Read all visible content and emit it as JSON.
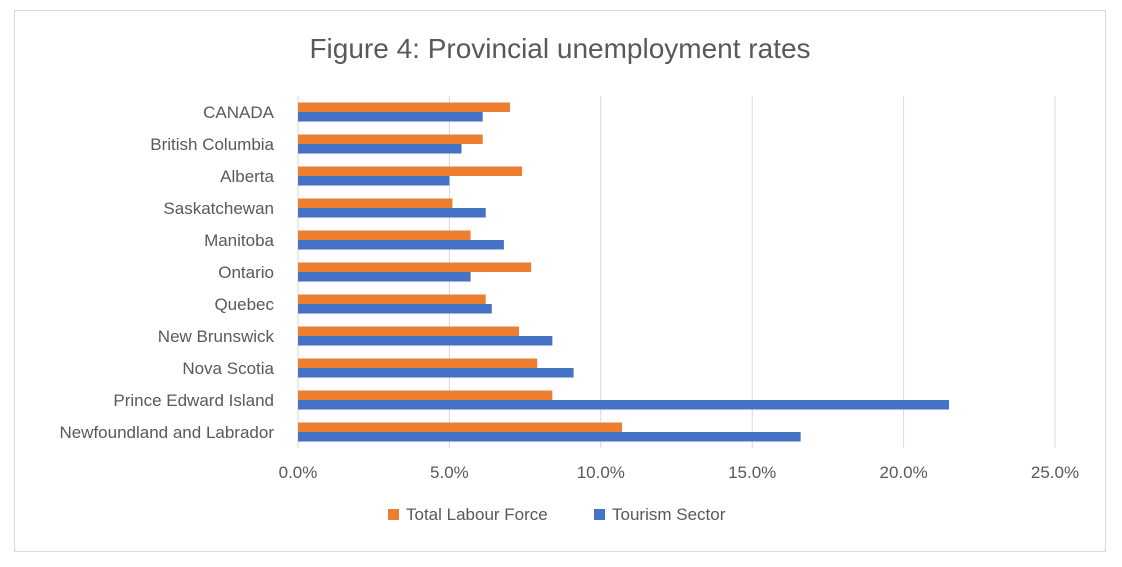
{
  "chart_data": {
    "type": "bar",
    "orientation": "horizontal",
    "title": "Figure 4: Provincial unemployment rates",
    "categories": [
      "CANADA",
      "British Columbia",
      "Alberta",
      "Saskatchewan",
      "Manitoba",
      "Ontario",
      "Quebec",
      "New Brunswick",
      "Nova Scotia",
      "Prince Edward Island",
      "Newfoundland and Labrador"
    ],
    "series": [
      {
        "name": "Total Labour Force",
        "color": "#ed7d31",
        "values": [
          7.0,
          6.1,
          7.4,
          5.1,
          5.7,
          7.7,
          6.2,
          7.3,
          7.9,
          8.4,
          10.7
        ]
      },
      {
        "name": "Tourism Sector",
        "color": "#4472c4",
        "values": [
          6.1,
          5.4,
          5.0,
          6.2,
          6.8,
          5.7,
          6.4,
          8.4,
          9.1,
          21.5,
          16.6
        ]
      }
    ],
    "xlim": [
      0,
      25
    ],
    "xticks": [
      "0.0%",
      "5.0%",
      "10.0%",
      "15.0%",
      "20.0%",
      "25.0%"
    ],
    "xtick_values": [
      0,
      5,
      10,
      15,
      20,
      25
    ],
    "grid": true,
    "legend_position": "bottom"
  }
}
